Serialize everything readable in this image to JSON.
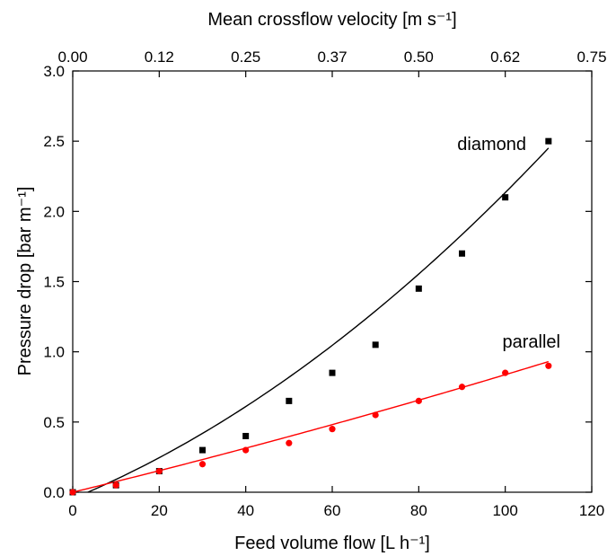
{
  "chart_data": {
    "type": "scatter",
    "title": "",
    "xlabel": "Feed volume flow [L h⁻¹]",
    "ylabel": "Pressure drop [bar m⁻¹]",
    "x2label": "Mean crossflow velocity [m s⁻¹]",
    "xlim": [
      0,
      120
    ],
    "ylim": [
      0,
      3.0
    ],
    "x_ticks": [
      "0",
      "20",
      "40",
      "60",
      "80",
      "100",
      "120"
    ],
    "y_ticks": [
      "0.0",
      "0.5",
      "1.0",
      "1.5",
      "2.0",
      "2.5",
      "3.0"
    ],
    "x2_ticks": [
      "0.00",
      "0.12",
      "0.25",
      "0.37",
      "0.50",
      "0.62",
      "0.75"
    ],
    "grid": false,
    "series": [
      {
        "name": "diamond",
        "marker": "square",
        "color": "#000000",
        "points": [
          [
            0,
            0.0
          ],
          [
            10,
            0.05
          ],
          [
            20,
            0.15
          ],
          [
            30,
            0.3
          ],
          [
            40,
            0.4
          ],
          [
            50,
            0.65
          ],
          [
            60,
            0.85
          ],
          [
            70,
            1.05
          ],
          [
            80,
            1.45
          ],
          [
            90,
            1.7
          ],
          [
            100,
            2.1
          ],
          [
            110,
            2.5
          ]
        ],
        "fit": {
          "x_start": 3.5,
          "x_end": 110,
          "a": 9e-05,
          "b": 0.0128,
          "c": -0.046
        }
      },
      {
        "name": "parallel",
        "marker": "circle",
        "color": "#ff0000",
        "points": [
          [
            0,
            0.0
          ],
          [
            10,
            0.05
          ],
          [
            20,
            0.15
          ],
          [
            30,
            0.2
          ],
          [
            40,
            0.3
          ],
          [
            50,
            0.35
          ],
          [
            60,
            0.45
          ],
          [
            70,
            0.55
          ],
          [
            80,
            0.65
          ],
          [
            90,
            0.75
          ],
          [
            100,
            0.85
          ],
          [
            110,
            0.9
          ]
        ],
        "fit": {
          "x_start": 0,
          "x_end": 110,
          "a": 8.7e-06,
          "b": 0.0075,
          "c": 0.0
        }
      }
    ]
  }
}
